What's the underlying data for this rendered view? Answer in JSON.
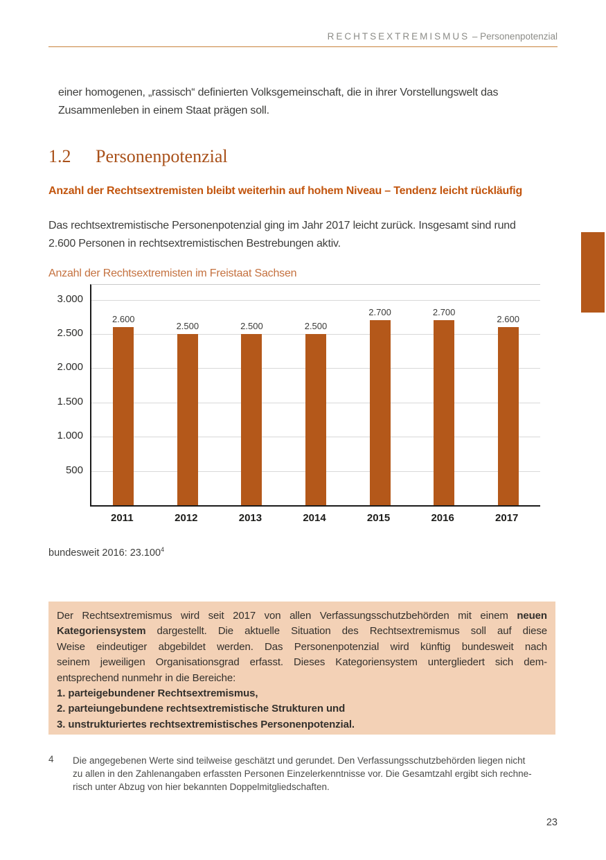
{
  "header": {
    "section": "RECHTSEXTREMISMUS",
    "separator": " – ",
    "subsection": "Personenpotenzial"
  },
  "intro_paragraph_lines": [
    "einer homogenen, „rassisch“ definierten Volksgemeinschaft, die in ihrer Vorstellungswelt das",
    "Zusammenleben in einem Staat prägen soll."
  ],
  "section": {
    "number": "1.2",
    "title": "Personenpotenzial"
  },
  "subtitle": "Anzahl der Rechtsextremisten bleibt weiterhin auf hohem Niveau – Tendenz leicht rückläufig",
  "paragraph_lines": [
    "Das rechtsextremistische Personenpotenzial ging im Jahr 2017 leicht zurück. Insgesamt sind rund",
    "2.600 Personen in rechtsextremistischen Bestrebungen aktiv."
  ],
  "chart_data": {
    "type": "bar",
    "title": "Anzahl der Rechtsextremisten im Freistaat Sachsen",
    "categories": [
      "2011",
      "2012",
      "2013",
      "2014",
      "2015",
      "2016",
      "2017"
    ],
    "values": [
      2600,
      2500,
      2500,
      2500,
      2700,
      2700,
      2600
    ],
    "value_labels": [
      "2.600",
      "2.500",
      "2.500",
      "2.500",
      "2.700",
      "2.700",
      "2.600"
    ],
    "y_ticks": [
      {
        "value": 3000,
        "label": "3.000"
      },
      {
        "value": 2500,
        "label": "2.500"
      },
      {
        "value": 2000,
        "label": "2.000"
      },
      {
        "value": 1500,
        "label": "1.500"
      },
      {
        "value": 1000,
        "label": "1.000"
      },
      {
        "value": 500,
        "label": "500"
      }
    ],
    "ylim": [
      0,
      3218
    ],
    "grid": true,
    "legend": false,
    "xlabel": "",
    "ylabel": "",
    "bar_color": "#b4581a"
  },
  "chart_note": {
    "text": "bundesweit 2016: 23.100",
    "footnote_ref": "4"
  },
  "info_box": {
    "background": "#f3d1b6",
    "paragraph_lines": [
      {
        "justify": true,
        "segments": [
          {
            "t": "Der Rechtsextremismus wird seit 2017 von allen Verfassungsschutzbehörden mit einem ",
            "b": false
          },
          {
            "t": "neuen",
            "b": true
          }
        ]
      },
      {
        "justify": true,
        "segments": [
          {
            "t": "Kategoriensystem",
            "b": true
          },
          {
            "t": " dargestellt. Die aktuelle Situation des Rechtsextremismus soll auf diese",
            "b": false
          }
        ]
      },
      {
        "justify": true,
        "segments": [
          {
            "t": "Weise eindeutiger abgebildet werden. Das Personenpotenzial wird künftig bundesweit nach",
            "b": false
          }
        ]
      },
      {
        "justify": true,
        "segments": [
          {
            "t": "seinem jeweiligen Organisationsgrad erfasst. Dieses Kategoriensystem untergliedert sich dem-",
            "b": false
          }
        ]
      },
      {
        "justify": false,
        "segments": [
          {
            "t": "entsprechend nunmehr in die Bereiche:",
            "b": false
          }
        ]
      }
    ],
    "list_items": [
      "1. parteigebundener Rechtsextremismus,",
      "2. parteiungebundene rechtsextremistische Strukturen und",
      "3. unstrukturiertes rechtsextremistisches Personenpotenzial."
    ]
  },
  "footnote": {
    "marker": "4",
    "lines": [
      "Die angegebenen Werte sind teilweise geschätzt und gerundet. Den Verfassungsschutzbehörden liegen nicht",
      "zu allen in den Zahlenangaben erfassten Personen Einzelerkenntnisse vor. Die Gesamtzahl ergibt sich rechne-",
      "risch unter Abzug von hier bekannten Doppelmitgliedschaften."
    ]
  },
  "page": {
    "number": "23"
  },
  "colors": {
    "accent": "#b4581a",
    "heading": "#a9511a",
    "subtitle": "#c2550e",
    "chart_title": "#c4713f",
    "header_rule": "#c8823c",
    "box_background": "#f3d1b6"
  }
}
